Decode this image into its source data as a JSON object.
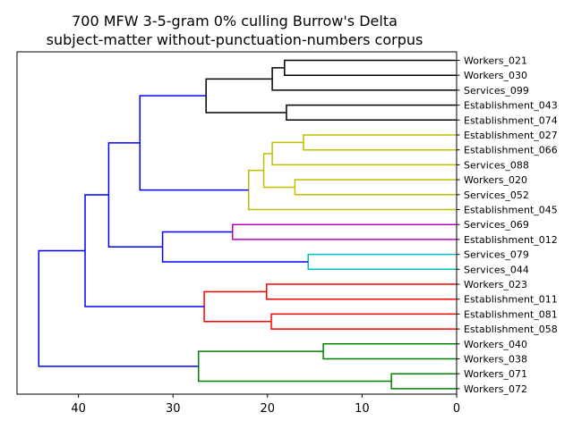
{
  "chart_data": {
    "type": "dendrogram",
    "title_lines": [
      "700 MFW 3-5-gram 0% culling Burrow's Delta",
      "subject-matter without-punctuation-numbers corpus"
    ],
    "xlim": [
      46.5,
      0
    ],
    "xticks": [
      40,
      30,
      20,
      10,
      0
    ],
    "orientation": "left",
    "leaves": [
      "Workers_021",
      "Workers_030",
      "Services_099",
      "Establishment_043",
      "Establishment_074",
      "Establishment_027",
      "Establishment_066",
      "Services_088",
      "Workers_020",
      "Services_052",
      "Establishment_045",
      "Services_069",
      "Establishment_012",
      "Services_079",
      "Services_044",
      "Workers_023",
      "Establishment_011",
      "Establishment_081",
      "Establishment_058",
      "Workers_040",
      "Workers_038",
      "Workers_071",
      "Workers_072"
    ],
    "colors": {
      "black": "#000000",
      "olive": "#bfbf00",
      "magenta": "#bf00bf",
      "cyan": "#00bfbf",
      "red": "#ff0000",
      "green": "#008000",
      "blue": "#0000ff"
    },
    "merges": [
      {
        "left": "L0",
        "right": "L1",
        "height": 18.2,
        "color": "black"
      },
      {
        "left": "M0",
        "right": "L2",
        "height": 19.5,
        "color": "black"
      },
      {
        "left": "L3",
        "right": "L4",
        "height": 18.0,
        "color": "black"
      },
      {
        "left": "M1",
        "right": "M2",
        "height": 26.5,
        "color": "black"
      },
      {
        "left": "L5",
        "right": "L6",
        "height": 16.2,
        "color": "olive"
      },
      {
        "left": "M4",
        "right": "L7",
        "height": 19.5,
        "color": "olive"
      },
      {
        "left": "L8",
        "right": "L9",
        "height": 17.1,
        "color": "olive"
      },
      {
        "left": "M5",
        "right": "M6",
        "height": 20.4,
        "color": "olive"
      },
      {
        "left": "M7",
        "right": "L10",
        "height": 22.0,
        "color": "olive"
      },
      {
        "left": "M3",
        "right": "M8",
        "height": 33.5,
        "color": "blue"
      },
      {
        "left": "L11",
        "right": "L12",
        "height": 23.7,
        "color": "magenta"
      },
      {
        "left": "L13",
        "right": "L14",
        "height": 15.7,
        "color": "cyan"
      },
      {
        "left": "M10",
        "right": "M11",
        "height": 31.1,
        "color": "blue"
      },
      {
        "left": "M9",
        "right": "M12",
        "height": 36.8,
        "color": "blue"
      },
      {
        "left": "L15",
        "right": "L16",
        "height": 20.1,
        "color": "red"
      },
      {
        "left": "L17",
        "right": "L18",
        "height": 19.6,
        "color": "red"
      },
      {
        "left": "M14",
        "right": "M15",
        "height": 26.7,
        "color": "red"
      },
      {
        "left": "M13",
        "right": "M16",
        "height": 39.3,
        "color": "blue"
      },
      {
        "left": "L19",
        "right": "L20",
        "height": 14.1,
        "color": "green"
      },
      {
        "left": "L21",
        "right": "L22",
        "height": 6.9,
        "color": "green"
      },
      {
        "left": "M18",
        "right": "M19",
        "height": 27.3,
        "color": "green"
      },
      {
        "left": "M17",
        "right": "M20",
        "height": 44.2,
        "color": "blue"
      }
    ]
  }
}
